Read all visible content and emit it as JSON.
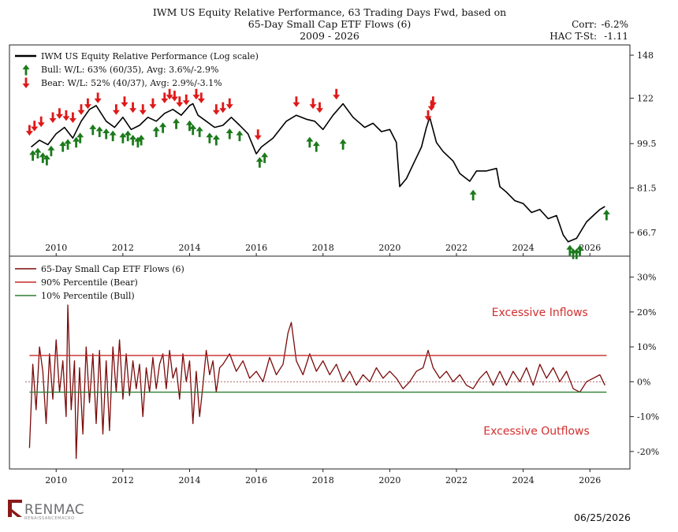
{
  "header": {
    "title_lines": [
      "IWM US Equity Relative Performance, 63 Trading Days Fwd, based on",
      "65-Day Small Cap ETF Flows (6)",
      "2009 - 2026"
    ],
    "corr_label": "Corr:",
    "corr_value": "-6.2%",
    "tstat_label": "HAC T-St:",
    "tstat_value": "-1.11"
  },
  "footer": {
    "date": "06/25/2026",
    "logo_text": "RENMAC",
    "logo_subtext": "RENAISSANCEMACRO"
  },
  "colors": {
    "price_line": "#000000",
    "flow_line": "#7b0a0a",
    "bear_line": "#c62828",
    "bull_line": "#2e7d32",
    "bull_arrow": "#1b7a1b",
    "bear_arrow": "#e01818",
    "annotation": "#d32f2f",
    "logo": "#7a7b7d"
  },
  "chart_data": [
    {
      "type": "line",
      "legend": [
        "IWM US Equity Relative Performance (Log scale)",
        "Bull:  W/L: 63% (60/35), Avg: 3.6%/-2.9%",
        "Bear:  W/L: 52% (40/37), Avg: 2.9%/-3.1%"
      ],
      "ylabel": "",
      "yscale": "log",
      "ylim": [
        60,
        155
      ],
      "yticks": [
        66.7,
        81.5,
        99.5,
        122,
        148
      ],
      "ytick_labels": [
        "66.7",
        "81.5",
        "99.5",
        "122",
        "148"
      ],
      "xlim": [
        2008.6,
        2027.2
      ],
      "xticks": [
        2010,
        2012,
        2014,
        2016,
        2018,
        2020,
        2022,
        2024,
        2026
      ],
      "xtick_labels": [
        "2010",
        "2012",
        "2014",
        "2016",
        "2018",
        "2020",
        "2022",
        "2024",
        "2026"
      ],
      "series": [
        {
          "name": "IWM US Equity Relative Performance (Log scale)",
          "x": [
            2009.25,
            2009.5,
            2009.75,
            2010.0,
            2010.25,
            2010.5,
            2010.75,
            2011.0,
            2011.2,
            2011.5,
            2011.75,
            2012.0,
            2012.25,
            2012.5,
            2012.75,
            2013.0,
            2013.25,
            2013.5,
            2013.75,
            2014.0,
            2014.1,
            2014.25,
            2014.5,
            2014.75,
            2015.0,
            2015.25,
            2015.5,
            2015.75,
            2016.0,
            2016.15,
            2016.5,
            2016.9,
            2017.2,
            2017.5,
            2017.75,
            2018.0,
            2018.3,
            2018.6,
            2018.9,
            2019.25,
            2019.5,
            2019.75,
            2020.0,
            2020.2,
            2020.3,
            2020.5,
            2020.75,
            2020.95,
            2021.1,
            2021.2,
            2021.4,
            2021.6,
            2021.9,
            2022.1,
            2022.4,
            2022.6,
            2022.9,
            2023.2,
            2023.3,
            2023.5,
            2023.75,
            2024.0,
            2024.25,
            2024.5,
            2024.75,
            2025.0,
            2025.2,
            2025.35,
            2025.6,
            2025.9,
            2026.1,
            2026.3,
            2026.45
          ],
          "y": [
            98,
            101,
            99,
            104,
            107,
            102,
            110,
            116,
            118,
            110,
            107,
            112,
            106,
            108,
            112,
            110,
            114,
            116,
            113,
            118,
            119,
            113,
            110,
            107,
            108,
            112,
            108,
            104,
            95,
            98,
            102,
            110,
            113,
            111,
            110,
            106,
            113,
            119,
            112,
            107,
            109,
            105,
            106,
            100,
            82,
            85,
            92,
            98,
            107,
            112,
            100,
            96,
            92,
            87,
            84,
            88,
            88,
            89,
            82,
            80,
            77,
            76,
            73,
            74,
            71,
            72,
            66,
            64,
            65,
            70,
            72,
            74,
            75
          ]
        }
      ],
      "signals": {
        "bull_x": [
          2009.3,
          2009.45,
          2009.6,
          2009.72,
          2009.85,
          2010.2,
          2010.35,
          2010.6,
          2010.72,
          2011.1,
          2011.3,
          2011.5,
          2011.7,
          2012.0,
          2012.15,
          2012.3,
          2012.45,
          2012.55,
          2013.0,
          2013.2,
          2013.6,
          2014.0,
          2014.1,
          2014.3,
          2014.6,
          2014.8,
          2015.2,
          2015.5,
          2016.1,
          2016.25,
          2017.6,
          2017.8,
          2018.6,
          2022.5,
          2025.4,
          2025.5,
          2025.6,
          2025.7,
          2026.5
        ],
        "bull_y": [
          98,
          99,
          97,
          96,
          100,
          102,
          103,
          104,
          106,
          110,
          109,
          108,
          107,
          106,
          107,
          105,
          104,
          105,
          109,
          111,
          113,
          112,
          110,
          109,
          106,
          105,
          108,
          107,
          95,
          97,
          104,
          102,
          103,
          82,
          64,
          63,
          63,
          64,
          75
        ],
        "bear_x": [
          2009.2,
          2009.35,
          2009.55,
          2009.9,
          2010.1,
          2010.3,
          2010.5,
          2010.75,
          2010.95,
          2011.25,
          2011.8,
          2012.05,
          2012.3,
          2012.6,
          2012.9,
          2013.25,
          2013.4,
          2013.55,
          2013.7,
          2013.9,
          2014.2,
          2014.35,
          2014.8,
          2015.0,
          2015.2,
          2016.05,
          2017.2,
          2017.7,
          2017.9,
          2018.4,
          2021.15,
          2021.25,
          2021.3
        ],
        "bear_y": [
          102,
          104,
          106,
          108,
          110,
          109,
          108,
          112,
          115,
          118,
          112,
          116,
          113,
          112,
          115,
          118,
          120,
          119,
          116,
          117,
          120,
          118,
          112,
          113,
          115,
          100,
          116,
          115,
          113,
          120,
          109,
          114,
          116
        ]
      }
    },
    {
      "type": "line",
      "legend": [
        "65-Day Small Cap ETF Flows (6)",
        "90% Percentile (Bear)",
        "10% Percentile (Bull)"
      ],
      "ylabel": "",
      "ylim": [
        -25,
        36
      ],
      "yticks": [
        -20,
        -10,
        0,
        10,
        20,
        30
      ],
      "ytick_labels": [
        "-20%",
        "-10%",
        "0%",
        "10%",
        "20%",
        "30%"
      ],
      "xlim": [
        2008.6,
        2027.2
      ],
      "xticks": [
        2010,
        2012,
        2014,
        2016,
        2018,
        2020,
        2022,
        2024,
        2026
      ],
      "xtick_labels": [
        "2010",
        "2012",
        "2014",
        "2016",
        "2018",
        "2020",
        "2022",
        "2024",
        "2026"
      ],
      "series": [
        {
          "name": "65-Day Small Cap ETF Flows (6)",
          "x": [
            2009.2,
            2009.3,
            2009.4,
            2009.5,
            2009.6,
            2009.7,
            2009.8,
            2009.9,
            2010.0,
            2010.1,
            2010.2,
            2010.3,
            2010.35,
            2010.45,
            2010.55,
            2010.6,
            2010.7,
            2010.8,
            2010.9,
            2011.0,
            2011.1,
            2011.2,
            2011.3,
            2011.4,
            2011.5,
            2011.6,
            2011.7,
            2011.8,
            2011.9,
            2012.0,
            2012.1,
            2012.2,
            2012.3,
            2012.4,
            2012.5,
            2012.6,
            2012.7,
            2012.8,
            2012.9,
            2013.0,
            2013.1,
            2013.2,
            2013.3,
            2013.4,
            2013.5,
            2013.6,
            2013.7,
            2013.8,
            2013.9,
            2014.0,
            2014.1,
            2014.2,
            2014.3,
            2014.4,
            2014.5,
            2014.6,
            2014.7,
            2014.8,
            2014.9,
            2015.0,
            2015.2,
            2015.4,
            2015.6,
            2015.8,
            2016.0,
            2016.2,
            2016.4,
            2016.6,
            2016.8,
            2016.95,
            2017.05,
            2017.2,
            2017.4,
            2017.6,
            2017.8,
            2018.0,
            2018.2,
            2018.4,
            2018.6,
            2018.8,
            2019.0,
            2019.2,
            2019.4,
            2019.6,
            2019.8,
            2020.0,
            2020.2,
            2020.4,
            2020.6,
            2020.8,
            2021.0,
            2021.15,
            2021.3,
            2021.5,
            2021.7,
            2021.9,
            2022.1,
            2022.3,
            2022.5,
            2022.7,
            2022.9,
            2023.1,
            2023.3,
            2023.5,
            2023.7,
            2023.9,
            2024.1,
            2024.3,
            2024.5,
            2024.7,
            2024.9,
            2025.1,
            2025.3,
            2025.5,
            2025.7,
            2025.9,
            2026.1,
            2026.3,
            2026.45
          ],
          "y": [
            -19,
            5,
            -8,
            10,
            3,
            -12,
            8,
            -5,
            12,
            -3,
            6,
            -10,
            22,
            -8,
            6,
            -22,
            4,
            -15,
            10,
            -6,
            8,
            -12,
            9,
            -15,
            6,
            -14,
            10,
            -3,
            12,
            -5,
            8,
            -4,
            6,
            -2,
            5,
            -10,
            4,
            -3,
            7,
            -2,
            5,
            8,
            -2,
            9,
            1,
            4,
            -5,
            8,
            0,
            6,
            -12,
            3,
            -10,
            -1,
            9,
            2,
            6,
            -3,
            4,
            5,
            8,
            3,
            6,
            1,
            3,
            0,
            7,
            2,
            5,
            14,
            17,
            6,
            2,
            8,
            3,
            6,
            2,
            5,
            0,
            3,
            -1,
            2,
            0,
            4,
            1,
            3,
            1,
            -2,
            0,
            3,
            4,
            9,
            4,
            1,
            3,
            0,
            2,
            -1,
            -2,
            1,
            3,
            -1,
            3,
            -1,
            3,
            0,
            4,
            -1,
            5,
            1,
            4,
            0,
            3,
            -2,
            -3,
            0,
            1,
            2,
            -1
          ]
        },
        {
          "name": "90% Percentile (Bear)",
          "x": [
            2009.2,
            2026.5
          ],
          "y": [
            7.5,
            7.5
          ]
        },
        {
          "name": "10% Percentile (Bull)",
          "x": [
            2009.2,
            2026.5
          ],
          "y": [
            -3.0,
            -3.0
          ]
        }
      ],
      "annotations": [
        {
          "text": "Excessive Inflows",
          "x": 2024.5,
          "y": 18.8
        },
        {
          "text": "Excessive Outflows",
          "x": 2024.4,
          "y": -15.2
        }
      ]
    }
  ]
}
